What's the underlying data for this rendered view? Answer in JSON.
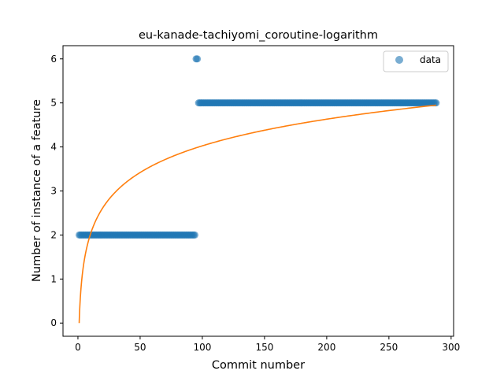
{
  "chart_data": {
    "type": "scatter",
    "title": "eu-kanade-tachiyomi_coroutine-logarithm",
    "xlabel": "Commit number",
    "ylabel": "Number of instance of a feature",
    "xlim": [
      -12,
      302
    ],
    "ylim": [
      -0.3,
      6.3
    ],
    "xticks": [
      0,
      50,
      100,
      150,
      200,
      250,
      300
    ],
    "yticks": [
      0,
      1,
      2,
      3,
      4,
      5,
      6
    ],
    "grid": false,
    "legend_position": "top-right",
    "series": [
      {
        "name": "data",
        "kind": "scatter",
        "color": "#1f77b4",
        "segments": [
          {
            "x_start": 1,
            "x_end": 94,
            "y": 2
          },
          {
            "x_start": 95,
            "x_end": 96,
            "y": 6
          },
          {
            "x_start": 97,
            "x_end": 288,
            "y": 5
          }
        ]
      },
      {
        "kind": "line",
        "color": "#ff7f0e",
        "model": "logarithmic",
        "a": 0.874,
        "b": 0,
        "x_range": [
          1,
          288
        ]
      }
    ]
  }
}
